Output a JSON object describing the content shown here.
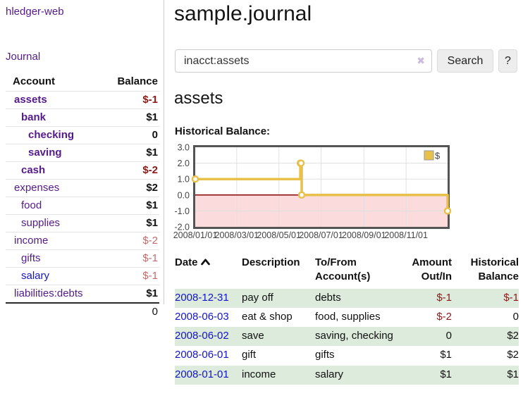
{
  "app_title": "hledger-web",
  "sidebar": {
    "journal_link": "Journal",
    "accounts": {
      "header_account": "Account",
      "header_balance": "Balance",
      "rows": [
        {
          "name": "assets",
          "balance": "$-1",
          "depth": "0",
          "emph": "true",
          "tone": "neg-strong",
          "link": "purple"
        },
        {
          "name": "bank",
          "balance": "$1",
          "depth": "1",
          "emph": "true",
          "tone": "",
          "link": "purple"
        },
        {
          "name": "checking",
          "balance": "0",
          "depth": "2",
          "emph": "true",
          "tone": "",
          "link": "purple"
        },
        {
          "name": "saving",
          "balance": "$1",
          "depth": "2",
          "emph": "true",
          "tone": "",
          "link": "purple"
        },
        {
          "name": "cash",
          "balance": "$-2",
          "depth": "1",
          "emph": "true",
          "tone": "neg-strong",
          "link": "purple"
        },
        {
          "name": "expenses",
          "balance": "$2",
          "depth": "0",
          "emph": "false",
          "tone": "",
          "link": "purple"
        },
        {
          "name": "food",
          "balance": "$1",
          "depth": "1",
          "emph": "false",
          "tone": "",
          "link": "purple"
        },
        {
          "name": "supplies",
          "balance": "$1",
          "depth": "1",
          "emph": "false",
          "tone": "",
          "link": "purple"
        },
        {
          "name": "income",
          "balance": "$-2",
          "depth": "0",
          "emph": "false",
          "tone": "neg-soft",
          "link": "purple"
        },
        {
          "name": "gifts",
          "balance": "$-1",
          "depth": "1",
          "emph": "false",
          "tone": "neg-soft",
          "link": "purple"
        },
        {
          "name": "salary",
          "balance": "$-1",
          "depth": "1",
          "emph": "false",
          "tone": "neg-soft",
          "link": "blue"
        },
        {
          "name": "liabilities:debts",
          "balance": "$1",
          "depth": "0",
          "emph": "false",
          "tone": "",
          "link": "purple"
        }
      ],
      "total": "0"
    }
  },
  "main": {
    "title": "sample.journal",
    "account_heading": "assets",
    "chart_label": "Historical Balance:"
  },
  "search": {
    "value": "inacct:assets",
    "clear_icon": "✖",
    "search_button": "Search",
    "help_button": "?"
  },
  "chart_data": {
    "type": "line",
    "subtype": "step-after",
    "title": "Historical Balance",
    "x_range": [
      "2008-01-01",
      "2008-12-31"
    ],
    "y_range": [
      -2,
      3
    ],
    "grid": true,
    "legend": {
      "label": "$",
      "position": "top-right"
    },
    "colors": {
      "line": "#e8c14a",
      "point_fill": "#ffffff",
      "negative_region_fill": "#fbdbdb",
      "zero_line": "#8b0000",
      "border": "#545454",
      "gridline": "#e0e0e0",
      "tick_text": "#444444"
    },
    "y_ticks": [
      {
        "value": 3,
        "label": "3.0"
      },
      {
        "value": 2,
        "label": "2.0"
      },
      {
        "value": 1,
        "label": "1.0"
      },
      {
        "value": 0,
        "label": "0.0"
      },
      {
        "value": -1,
        "label": "-1.0"
      },
      {
        "value": -2,
        "label": "-2.0"
      }
    ],
    "x_ticks": [
      {
        "date": "2008-01-01",
        "label": "2008/01/01"
      },
      {
        "date": "2008-03-01",
        "label": "2008/03/01"
      },
      {
        "date": "2008-05-01",
        "label": "2008/05/01"
      },
      {
        "date": "2008-07-01",
        "label": "2008/07/01"
      },
      {
        "date": "2008-09-01",
        "label": "2008/09/01"
      },
      {
        "date": "2008-11-01",
        "label": "2008/11/01"
      }
    ],
    "series": [
      {
        "name": "$",
        "points": [
          {
            "date": "2008-01-01",
            "value": 1
          },
          {
            "date": "2008-06-01",
            "value": 2
          },
          {
            "date": "2008-06-02",
            "value": 2
          },
          {
            "date": "2008-06-03",
            "value": 0
          },
          {
            "date": "2008-12-31",
            "value": -1
          }
        ]
      }
    ]
  },
  "register": {
    "headers": {
      "date": "Date",
      "description": "Description",
      "accounts": "To/From Account(s)",
      "amount": "Amount Out/In",
      "balance": "Historical Balance"
    },
    "rows": [
      {
        "date": "2008-12-31",
        "description": "pay off",
        "accounts": "debts",
        "amount": "$-1",
        "amount_tone": "neg",
        "balance": "$-1",
        "balance_tone": "neg"
      },
      {
        "date": "2008-06-03",
        "description": "eat & shop",
        "accounts": "food, supplies",
        "amount": "$-2",
        "amount_tone": "neg",
        "balance": "0",
        "balance_tone": ""
      },
      {
        "date": "2008-06-02",
        "description": "save",
        "accounts": "saving, checking",
        "amount": "0",
        "amount_tone": "",
        "balance": "$2",
        "balance_tone": ""
      },
      {
        "date": "2008-06-01",
        "description": "gift",
        "accounts": "gifts",
        "amount": "$1",
        "amount_tone": "",
        "balance": "$2",
        "balance_tone": ""
      },
      {
        "date": "2008-01-01",
        "description": "income",
        "accounts": "salary",
        "amount": "$1",
        "amount_tone": "",
        "balance": "$1",
        "balance_tone": ""
      }
    ]
  }
}
